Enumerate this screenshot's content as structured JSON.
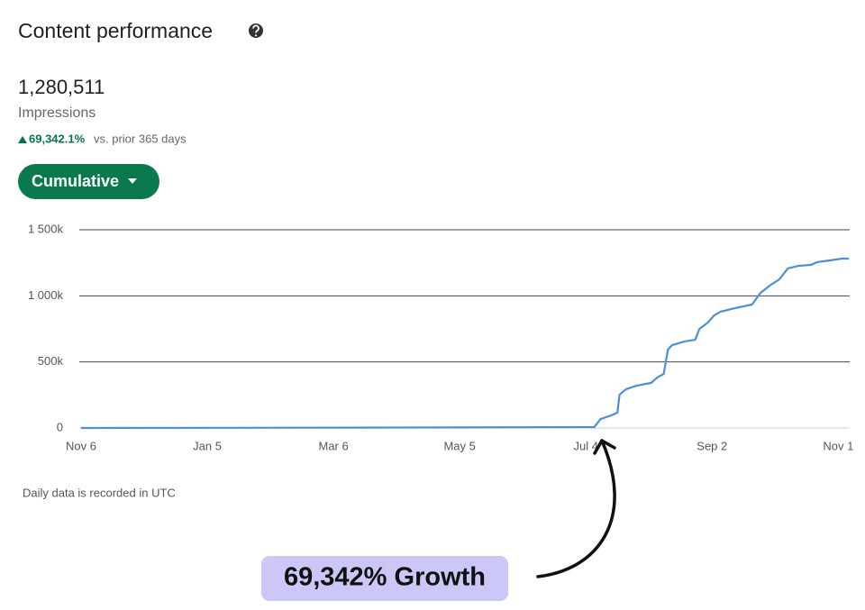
{
  "header": {
    "title": "Content performance"
  },
  "metric": {
    "value": "1,280,511",
    "label": "Impressions",
    "change": "69,342.1%",
    "comparison": "vs. prior 365 days"
  },
  "control": {
    "label": "Cumulative"
  },
  "chart_data": {
    "type": "line",
    "color": "#4a90d9",
    "x": [
      0,
      100,
      200,
      244,
      247,
      252,
      255,
      256,
      259,
      264,
      271,
      274,
      277,
      279,
      281,
      287,
      292,
      294,
      298,
      301,
      304,
      311,
      319,
      323,
      328,
      332,
      336,
      341,
      347,
      350,
      356,
      362,
      365
    ],
    "values": [
      0,
      2000,
      5000,
      7000,
      68000,
      95000,
      116000,
      252000,
      293000,
      320000,
      341000,
      382000,
      409000,
      593000,
      627000,
      655000,
      668000,
      750000,
      798000,
      852000,
      880000,
      907000,
      934000,
      1022000,
      1084000,
      1125000,
      1207000,
      1227000,
      1234000,
      1255000,
      1268000,
      1282000,
      1282000
    ],
    "xlim": [
      0,
      365
    ],
    "xticks": [
      {
        "value": 0,
        "label": "Nov 6"
      },
      {
        "value": 60,
        "label": "Jan 5"
      },
      {
        "value": 120,
        "label": "Mar 6"
      },
      {
        "value": 180,
        "label": "May 5"
      },
      {
        "value": 240,
        "label": "Jul 4"
      },
      {
        "value": 300,
        "label": "Sep 2"
      },
      {
        "value": 360,
        "label": "Nov 1"
      }
    ],
    "ylim": [
      0,
      1500000
    ],
    "yticks": [
      0,
      {
        "value": 500000,
        "label": "500k"
      },
      {
        "value": 1000000,
        "label": "1 000k"
      },
      {
        "value": 1500000,
        "label": "1 500k"
      }
    ],
    "grid": true
  },
  "footnote": "Daily data is recorded in UTC",
  "annotation": "69,342% Growth"
}
